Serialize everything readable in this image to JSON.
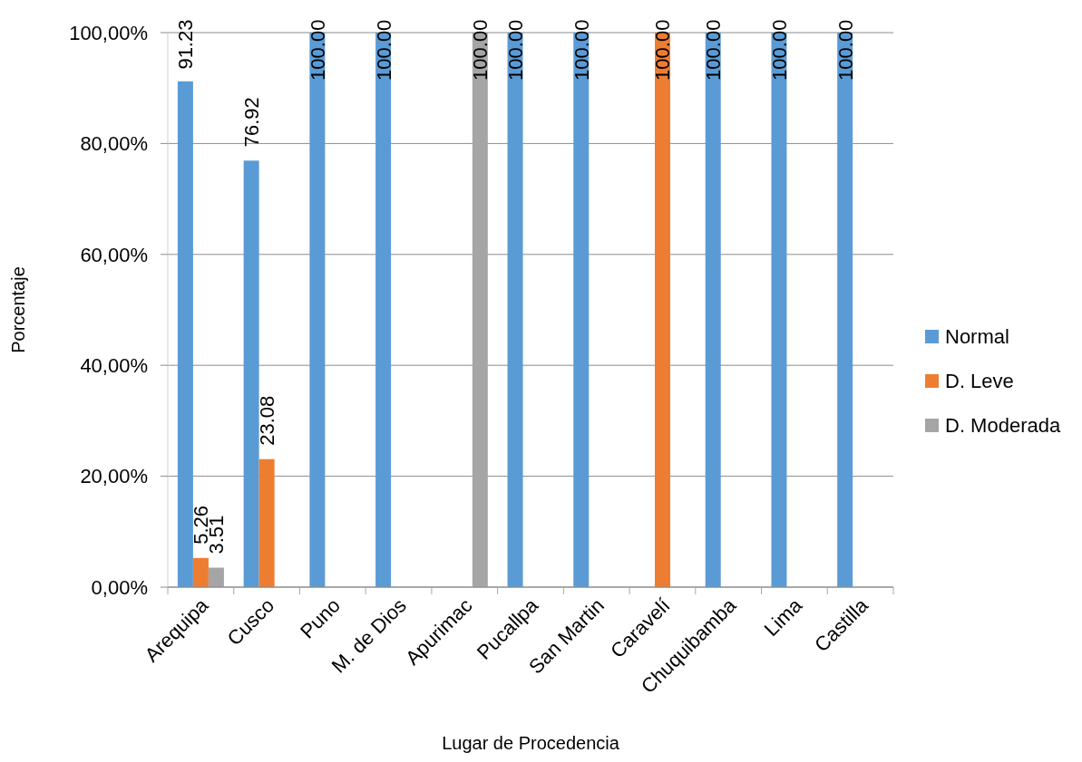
{
  "chart_data": {
    "type": "bar",
    "xlabel": "Lugar de Procedencia",
    "ylabel": "Porcentaje",
    "categories": [
      "Arequipa",
      "Cusco",
      "Puno",
      "M. de Dios",
      "Apurimac",
      "Pucallpa",
      "San Martin",
      "Caravelí",
      "Chuquibamba",
      "Lima",
      "Castilla"
    ],
    "series": [
      {
        "name": "Normal",
        "color": "#5b9bd5",
        "values": [
          91.23,
          76.92,
          100,
          100,
          null,
          100,
          100,
          null,
          100,
          100,
          100
        ],
        "value_labels": [
          "91.23",
          "76.92",
          "100.00",
          "100.00",
          null,
          "100.00",
          "100.00",
          null,
          "100.00",
          "100.00",
          "100.00"
        ]
      },
      {
        "name": "D. Leve",
        "color": "#ed7d31",
        "values": [
          5.26,
          23.08,
          null,
          null,
          null,
          null,
          null,
          100,
          null,
          null,
          null
        ],
        "value_labels": [
          "5.26",
          "23.08",
          null,
          null,
          null,
          null,
          null,
          "100.00",
          null,
          null,
          null
        ]
      },
      {
        "name": "D. Moderada",
        "color": "#a5a5a5",
        "values": [
          3.51,
          null,
          null,
          null,
          100,
          null,
          null,
          null,
          null,
          null,
          null
        ],
        "value_labels": [
          "3.51",
          null,
          null,
          null,
          "100.00",
          null,
          null,
          null,
          null,
          null,
          null
        ]
      }
    ],
    "ylim": [
      0,
      100
    ],
    "yticks": [
      {
        "value": 0,
        "label": "0,00%"
      },
      {
        "value": 20,
        "label": "20,00%"
      },
      {
        "value": 40,
        "label": "40,00%"
      },
      {
        "value": 60,
        "label": "60,00%"
      },
      {
        "value": 80,
        "label": "80,00%"
      },
      {
        "value": 100,
        "label": "100,00%"
      }
    ],
    "grid": "y",
    "legend": "right"
  }
}
